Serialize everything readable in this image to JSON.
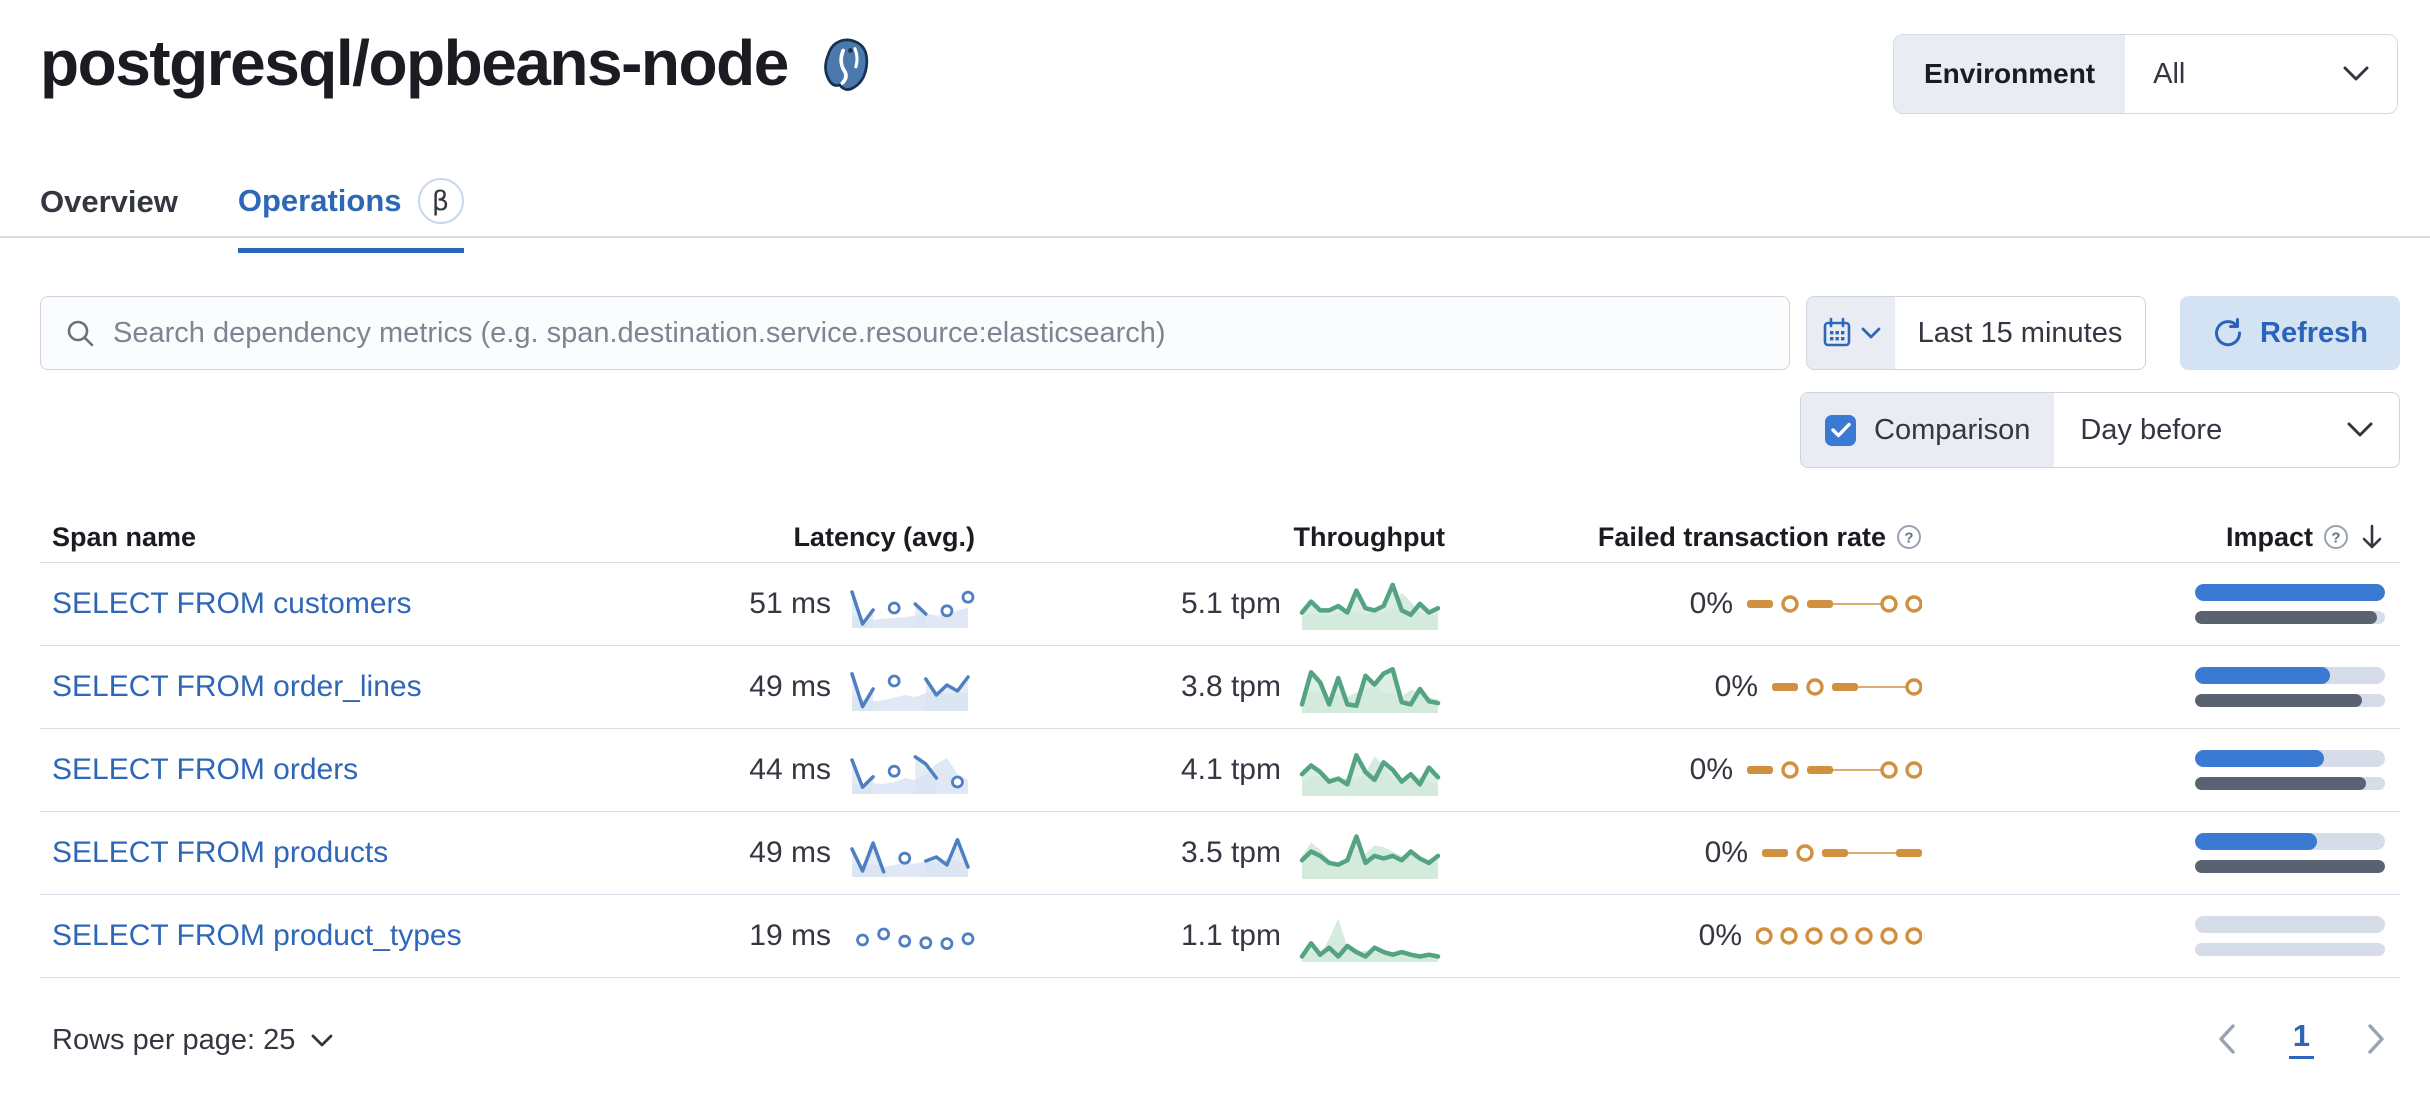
{
  "page": {
    "title": "postgresql/opbeans-node",
    "logo": "postgresql-elephant-icon"
  },
  "environment": {
    "label": "Environment",
    "value": "All"
  },
  "tabs": [
    {
      "label": "Overview",
      "active": false
    },
    {
      "label": "Operations",
      "active": true,
      "beta": "β"
    }
  ],
  "toolbar": {
    "search_placeholder": "Search dependency metrics (e.g. span.destination.service.resource:elasticsearch)",
    "time_range": "Last 15 minutes",
    "refresh_label": "Refresh",
    "comparison_label": "Comparison",
    "comparison_checked": true,
    "comparison_value": "Day before"
  },
  "table": {
    "headers": {
      "span_name": "Span name",
      "latency": "Latency (avg.)",
      "throughput": "Throughput",
      "failed_rate": "Failed transaction rate",
      "impact": "Impact"
    },
    "rows": [
      {
        "span_name": "SELECT FROM customers",
        "latency": "51 ms",
        "throughput": "5.1 tpm",
        "failed_rate": "0%",
        "impact_current": 100,
        "impact_previous": 96,
        "latency_spark": {
          "line": [
            85,
            5,
            40,
            null,
            45,
            null,
            55,
            30,
            null,
            38,
            null,
            72
          ],
          "shade": [
            25,
            18,
            15,
            18,
            20,
            22,
            26,
            32,
            26,
            30,
            38,
            46
          ]
        },
        "throughput_spark": {
          "line": [
            35,
            60,
            40,
            40,
            50,
            35,
            85,
            45,
            40,
            50,
            98,
            40,
            30,
            55,
            35,
            45
          ],
          "shade": [
            25,
            35,
            30,
            28,
            32,
            40,
            35,
            30,
            38,
            35,
            45,
            80,
            60,
            35,
            28,
            30
          ]
        },
        "failed_spark": [
          "dash",
          "circle",
          "dash",
          "thin",
          "circle",
          "circle"
        ]
      },
      {
        "span_name": "SELECT FROM order_lines",
        "latency": "49 ms",
        "throughput": "3.8 tpm",
        "failed_rate": "0%",
        "impact_current": 71,
        "impact_previous": 88,
        "latency_spark": {
          "line": [
            88,
            6,
            50,
            null,
            70,
            null,
            null,
            75,
            35,
            60,
            45,
            80
          ],
          "shade": [
            35,
            25,
            20,
            22,
            28,
            35,
            30,
            40,
            45,
            38,
            42,
            40
          ]
        },
        "throughput_spark": {
          "line": [
            15,
            88,
            65,
            15,
            75,
            15,
            12,
            80,
            60,
            85,
            95,
            20,
            15,
            50,
            22,
            18
          ],
          "shade": [
            35,
            45,
            38,
            28,
            38,
            32,
            42,
            48,
            55,
            42,
            38,
            32,
            48,
            42,
            32,
            26
          ]
        },
        "failed_spark": [
          "dash",
          "circle",
          "dash",
          "thin",
          "circle"
        ]
      },
      {
        "span_name": "SELECT FROM orders",
        "latency": "44 ms",
        "throughput": "4.1 tpm",
        "failed_rate": "0%",
        "impact_current": 68,
        "impact_previous": 90,
        "latency_spark": {
          "line": [
            80,
            12,
            38,
            null,
            52,
            null,
            88,
            70,
            35,
            null,
            25,
            null
          ],
          "shade": [
            20,
            18,
            22,
            20,
            25,
            35,
            30,
            45,
            70,
            85,
            45,
            30
          ]
        },
        "throughput_spark": {
          "line": [
            45,
            65,
            50,
            28,
            35,
            22,
            88,
            50,
            32,
            72,
            55,
            28,
            45,
            22,
            60,
            38
          ],
          "shade": [
            28,
            38,
            42,
            32,
            28,
            38,
            32,
            48,
            85,
            65,
            32,
            28,
            32,
            38,
            28,
            22
          ]
        },
        "failed_spark": [
          "dash",
          "circle",
          "dash",
          "thin",
          "circle",
          "circle"
        ]
      },
      {
        "span_name": "SELECT FROM products",
        "latency": "49 ms",
        "throughput": "3.5 tpm",
        "failed_rate": "0%",
        "impact_current": 64,
        "impact_previous": 100,
        "latency_spark": {
          "line": [
            65,
            10,
            80,
            8,
            null,
            42,
            null,
            35,
            45,
            25,
            88,
            20
          ],
          "shade": [
            30,
            22,
            28,
            20,
            25,
            30,
            28,
            35,
            30,
            40,
            35,
            30
          ]
        },
        "throughput_spark": {
          "line": [
            38,
            58,
            48,
            32,
            28,
            38,
            92,
            32,
            48,
            42,
            48,
            38,
            58,
            42,
            32,
            48
          ],
          "shade": [
            48,
            78,
            62,
            38,
            32,
            42,
            62,
            52,
            72,
            68,
            58,
            48,
            62,
            42,
            38,
            32
          ]
        },
        "failed_spark": [
          "dash",
          "circle",
          "dash",
          "thin",
          "dash"
        ]
      },
      {
        "span_name": "SELECT FROM product_types",
        "latency": "19 ms",
        "throughput": "1.1 tpm",
        "failed_rate": "0%",
        "impact_current": 0,
        "impact_previous": 0,
        "latency_spark": {
          "line": [
            null,
            45,
            null,
            60,
            null,
            42,
            null,
            38,
            null,
            36,
            null,
            48
          ],
          "shade": []
        },
        "throughput_spark": {
          "line": [
            8,
            38,
            12,
            28,
            8,
            32,
            18,
            8,
            28,
            18,
            12,
            18,
            12,
            8,
            12,
            8
          ],
          "shade": [
            12,
            18,
            12,
            48,
            95,
            28,
            18,
            22,
            18,
            12,
            18,
            12,
            8,
            12,
            8,
            8
          ]
        },
        "failed_spark": [
          "circle",
          "circle",
          "circle",
          "circle",
          "circle",
          "circle",
          "circle"
        ]
      }
    ]
  },
  "pagination": {
    "rows_per_page_label": "Rows per page: 25",
    "current_page": "1"
  },
  "icons": {
    "help": "?",
    "sort_desc": "↓"
  },
  "colors": {
    "link_blue": "#2f67b8",
    "accent_blue": "#3b7ad3",
    "latency_line": "#4e7fc1",
    "latency_fill": "#dbe5f3",
    "throughput_line": "#54a483",
    "throughput_fill": "#d2e9dc",
    "failed_orange": "#d0903f",
    "impact_track": "#d6dce8",
    "impact_previous": "#5a6271"
  }
}
